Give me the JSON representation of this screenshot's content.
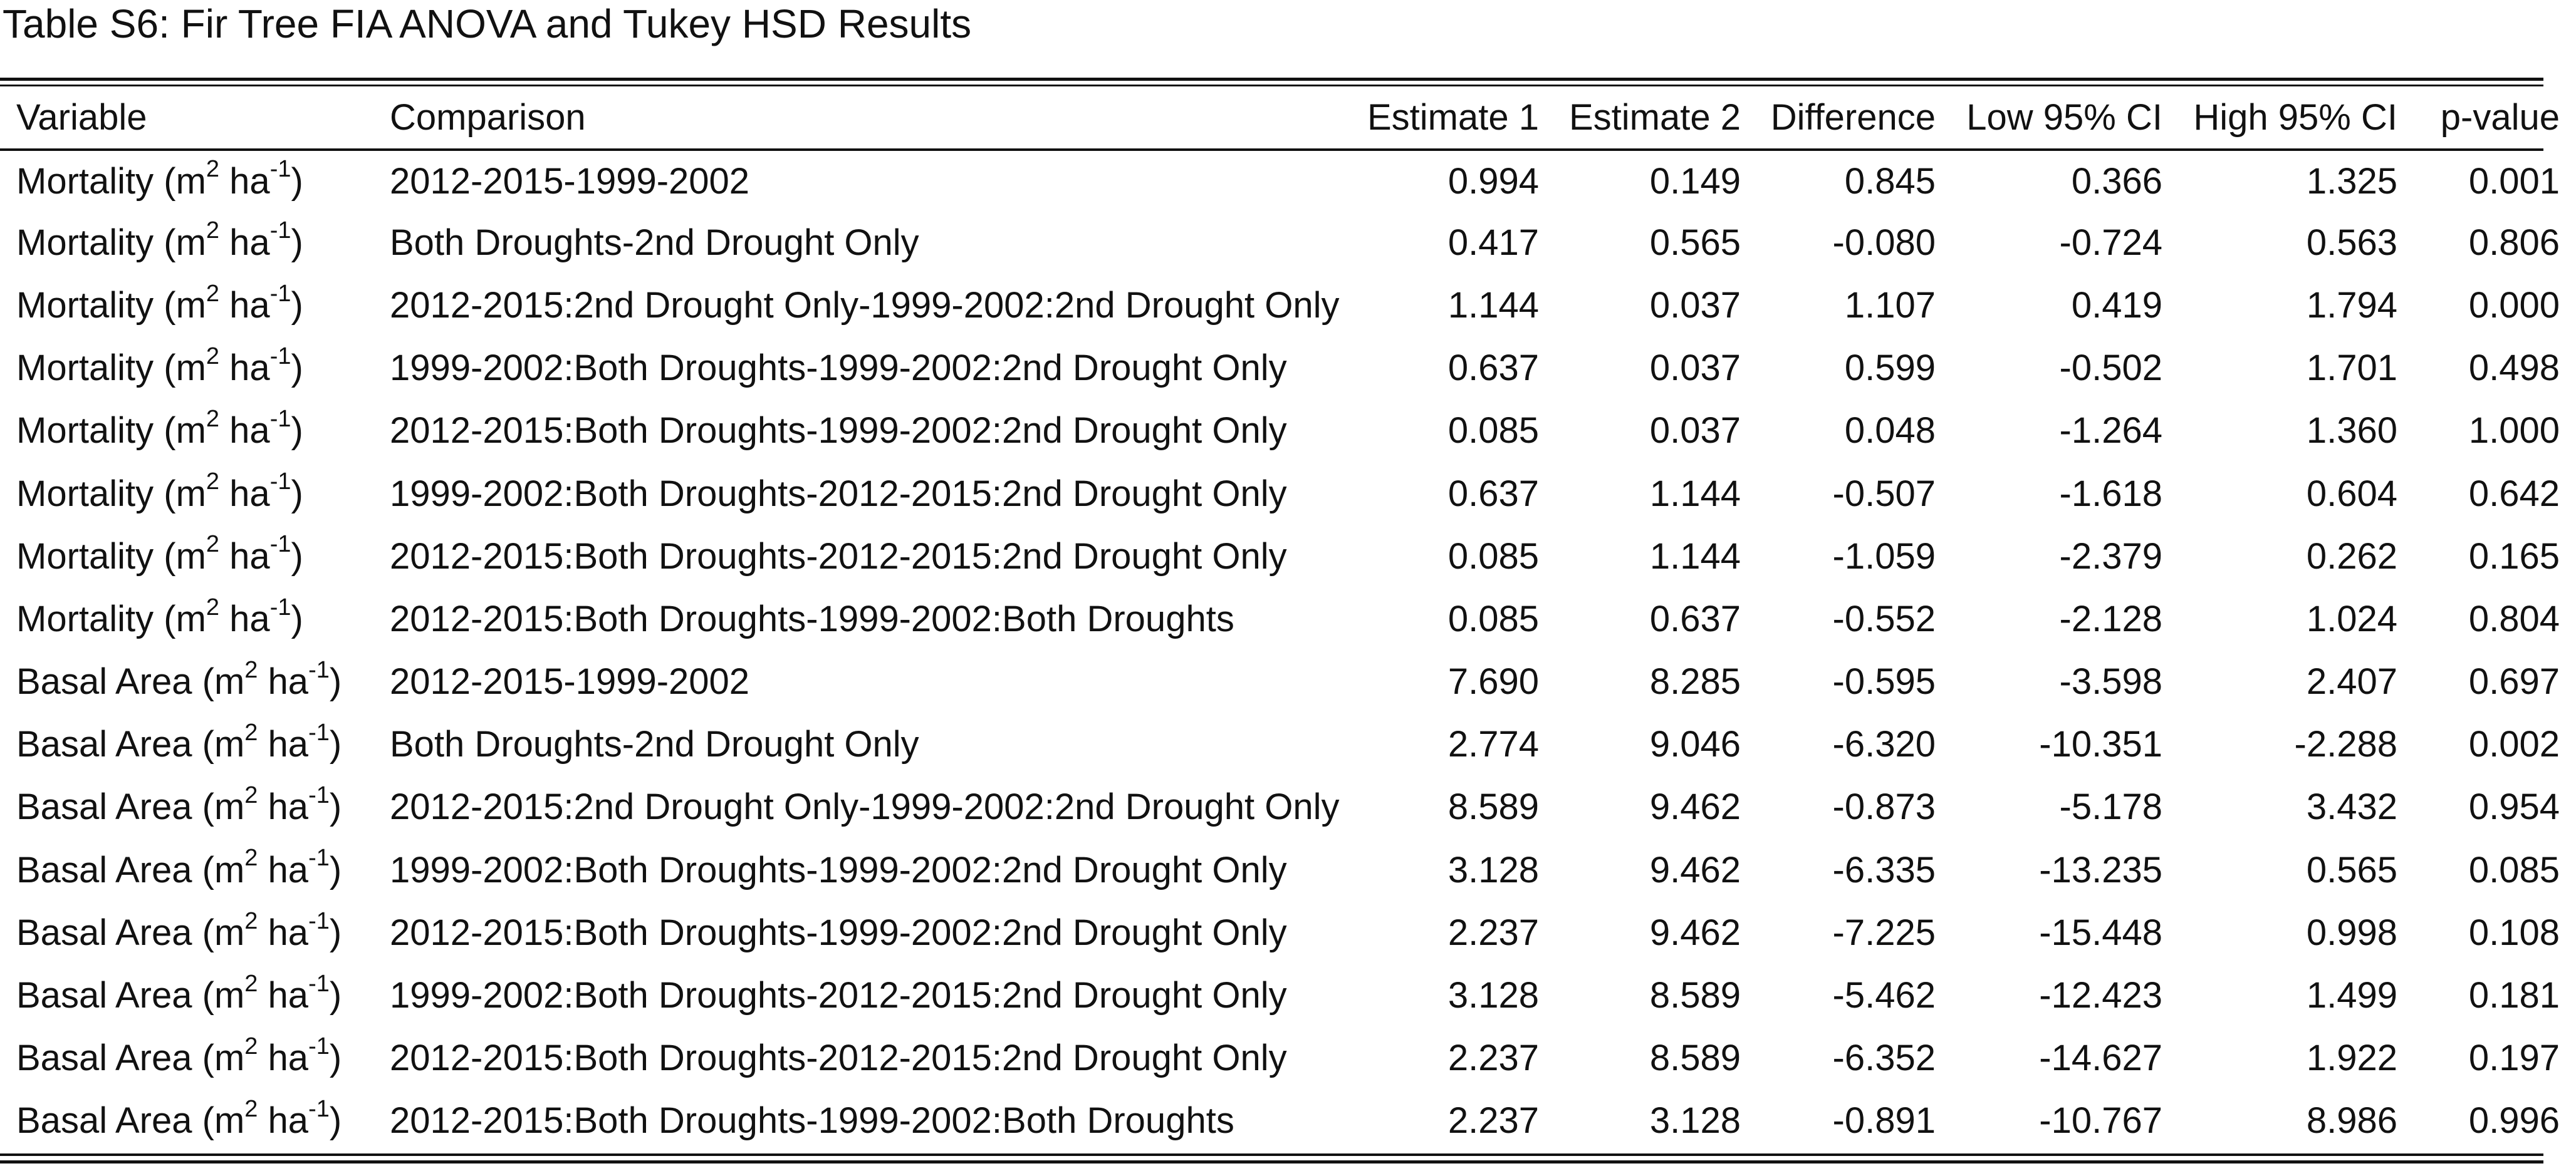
{
  "caption": "Table S6: Fir Tree FIA ANOVA and Tukey HSD Results",
  "columns": {
    "variable": "Variable",
    "comparison": "Comparison",
    "estimate1": "Estimate 1",
    "estimate2": "Estimate 2",
    "difference": "Difference",
    "low_ci": "Low 95% CI",
    "high_ci": "High 95% CI",
    "p_value": "p-value"
  },
  "unit": {
    "open": "(m",
    "exp1": "2",
    "mid": " ha",
    "exp2": "-1",
    "close": ")"
  },
  "rows": [
    {
      "variable": "Mortality",
      "comparison": "2012-2015-1999-2002",
      "estimate1": "0.994",
      "estimate2": "0.149",
      "difference": "0.845",
      "low_ci": "0.366",
      "high_ci": "1.325",
      "p_value": "0.001"
    },
    {
      "variable": "Mortality",
      "comparison": "Both Droughts-2nd Drought Only",
      "estimate1": "0.417",
      "estimate2": "0.565",
      "difference": "-0.080",
      "low_ci": "-0.724",
      "high_ci": "0.563",
      "p_value": "0.806"
    },
    {
      "variable": "Mortality",
      "comparison": "2012-2015:2nd Drought Only-1999-2002:2nd Drought Only",
      "estimate1": "1.144",
      "estimate2": "0.037",
      "difference": "1.107",
      "low_ci": "0.419",
      "high_ci": "1.794",
      "p_value": "0.000"
    },
    {
      "variable": "Mortality",
      "comparison": "1999-2002:Both Droughts-1999-2002:2nd Drought Only",
      "estimate1": "0.637",
      "estimate2": "0.037",
      "difference": "0.599",
      "low_ci": "-0.502",
      "high_ci": "1.701",
      "p_value": "0.498"
    },
    {
      "variable": "Mortality",
      "comparison": "2012-2015:Both Droughts-1999-2002:2nd Drought Only",
      "estimate1": "0.085",
      "estimate2": "0.037",
      "difference": "0.048",
      "low_ci": "-1.264",
      "high_ci": "1.360",
      "p_value": "1.000"
    },
    {
      "variable": "Mortality",
      "comparison": "1999-2002:Both Droughts-2012-2015:2nd Drought Only",
      "estimate1": "0.637",
      "estimate2": "1.144",
      "difference": "-0.507",
      "low_ci": "-1.618",
      "high_ci": "0.604",
      "p_value": "0.642"
    },
    {
      "variable": "Mortality",
      "comparison": "2012-2015:Both Droughts-2012-2015:2nd Drought Only",
      "estimate1": "0.085",
      "estimate2": "1.144",
      "difference": "-1.059",
      "low_ci": "-2.379",
      "high_ci": "0.262",
      "p_value": "0.165"
    },
    {
      "variable": "Mortality",
      "comparison": "2012-2015:Both Droughts-1999-2002:Both Droughts",
      "estimate1": "0.085",
      "estimate2": "0.637",
      "difference": "-0.552",
      "low_ci": "-2.128",
      "high_ci": "1.024",
      "p_value": "0.804"
    },
    {
      "variable": "Basal Area",
      "comparison": "2012-2015-1999-2002",
      "estimate1": "7.690",
      "estimate2": "8.285",
      "difference": "-0.595",
      "low_ci": "-3.598",
      "high_ci": "2.407",
      "p_value": "0.697"
    },
    {
      "variable": "Basal Area",
      "comparison": "Both Droughts-2nd Drought Only",
      "estimate1": "2.774",
      "estimate2": "9.046",
      "difference": "-6.320",
      "low_ci": "-10.351",
      "high_ci": "-2.288",
      "p_value": "0.002"
    },
    {
      "variable": "Basal Area",
      "comparison": "2012-2015:2nd Drought Only-1999-2002:2nd Drought Only",
      "estimate1": "8.589",
      "estimate2": "9.462",
      "difference": "-0.873",
      "low_ci": "-5.178",
      "high_ci": "3.432",
      "p_value": "0.954"
    },
    {
      "variable": "Basal Area",
      "comparison": "1999-2002:Both Droughts-1999-2002:2nd Drought Only",
      "estimate1": "3.128",
      "estimate2": "9.462",
      "difference": "-6.335",
      "low_ci": "-13.235",
      "high_ci": "0.565",
      "p_value": "0.085"
    },
    {
      "variable": "Basal Area",
      "comparison": "2012-2015:Both Droughts-1999-2002:2nd Drought Only",
      "estimate1": "2.237",
      "estimate2": "9.462",
      "difference": "-7.225",
      "low_ci": "-15.448",
      "high_ci": "0.998",
      "p_value": "0.108"
    },
    {
      "variable": "Basal Area",
      "comparison": "1999-2002:Both Droughts-2012-2015:2nd Drought Only",
      "estimate1": "3.128",
      "estimate2": "8.589",
      "difference": "-5.462",
      "low_ci": "-12.423",
      "high_ci": "1.499",
      "p_value": "0.181"
    },
    {
      "variable": "Basal Area",
      "comparison": "2012-2015:Both Droughts-2012-2015:2nd Drought Only",
      "estimate1": "2.237",
      "estimate2": "8.589",
      "difference": "-6.352",
      "low_ci": "-14.627",
      "high_ci": "1.922",
      "p_value": "0.197"
    },
    {
      "variable": "Basal Area",
      "comparison": "2012-2015:Both Droughts-1999-2002:Both Droughts",
      "estimate1": "2.237",
      "estimate2": "3.128",
      "difference": "-0.891",
      "low_ci": "-10.767",
      "high_ci": "8.986",
      "p_value": "0.996"
    }
  ]
}
